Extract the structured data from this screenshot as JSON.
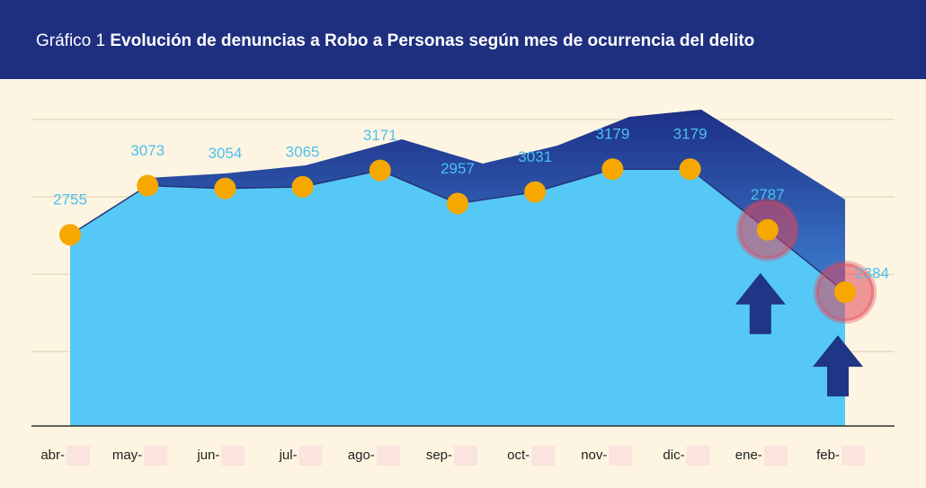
{
  "chart_data": {
    "type": "area",
    "title_prefix": "Gráfico 1",
    "title": "Evolución de denuncias a Robo a Personas según mes de ocurrencia del delito",
    "categories": [
      "abr-",
      "may-",
      "jun-",
      "jul-",
      "ago-",
      "sep-",
      "oct-",
      "nov-",
      "dic-",
      "ene-",
      "feb-"
    ],
    "values": [
      2755,
      3073,
      3054,
      3065,
      3171,
      2957,
      3031,
      3179,
      3179,
      2787,
      2384
    ],
    "color": "#56c8f5",
    "marker_color": "#f7a800",
    "line_color": "#23337a",
    "ylim": [
      1520,
      3720
    ],
    "yticks": [
      2000,
      2500,
      3000,
      3500
    ],
    "grid": true,
    "highlight": [
      9,
      10
    ]
  }
}
